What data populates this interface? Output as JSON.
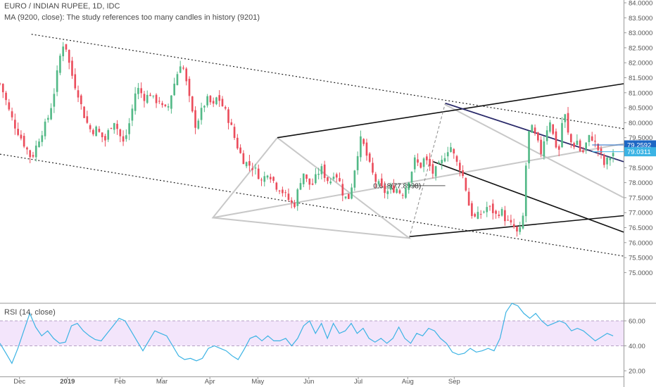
{
  "header": {
    "title": "EURO / INDIAN RUPEE, 1D, IDC",
    "ma_note": "MA (9200, close): The study references too many candles in history (9201)",
    "rsi_label": "RSI (14, close)"
  },
  "colors": {
    "up": "#53b987",
    "down": "#eb4d5c",
    "rsi_line": "#3bb3e4",
    "rsi_band": "#f3e5fb",
    "price_tag_current": "#1e67c4",
    "price_tag_last": "#3bb3e4",
    "channel_line": "#111111",
    "grey_line": "#c8c8c8"
  },
  "chart_data": [
    {
      "type": "candlestick",
      "title": "EURO / INDIAN RUPEE, 1D, IDC",
      "x_ticks": [
        "Dec",
        "2019",
        "Feb",
        "Mar",
        "Apr",
        "May",
        "Jun",
        "Jul",
        "Aug",
        "Sep"
      ],
      "y_ticks": [
        "75.0000",
        "75.5000",
        "76.0000",
        "76.5000",
        "77.0000",
        "77.5000",
        "78.0000",
        "78.5000",
        "79.0000",
        "79.5000",
        "80.0000",
        "80.5000",
        "81.0000",
        "81.5000",
        "82.0000",
        "82.5000",
        "83.0000",
        "83.5000",
        "84.0000"
      ],
      "ylim": [
        74.0,
        84.1
      ],
      "price_tags": [
        "79.2592",
        "79.0311"
      ],
      "annotations": [
        "0.618(77.8998)"
      ],
      "series": [
        {
          "close_path": [
            [
              0,
              81.3
            ],
            [
              3,
              80.9
            ],
            [
              6,
              80.4
            ],
            [
              9,
              80.0
            ],
            [
              12,
              79.7
            ],
            [
              15,
              79.4
            ],
            [
              18,
              79.1
            ],
            [
              21,
              78.8
            ],
            [
              24,
              79.2
            ],
            [
              27,
              79.6
            ],
            [
              30,
              79.9
            ],
            [
              33,
              80.3
            ],
            [
              36,
              81.0
            ],
            [
              40,
              82.2
            ],
            [
              43,
              82.8
            ],
            [
              46,
              82.0
            ],
            [
              49,
              81.4
            ],
            [
              52,
              81.0
            ],
            [
              55,
              80.4
            ],
            [
              58,
              80.0
            ],
            [
              61,
              79.7
            ],
            [
              64,
              79.8
            ],
            [
              67,
              79.6
            ],
            [
              70,
              79.4
            ],
            [
              73,
              79.8
            ],
            [
              76,
              80.1
            ],
            [
              79,
              79.7
            ],
            [
              82,
              79.3
            ],
            [
              85,
              79.7
            ],
            [
              88,
              80.4
            ],
            [
              91,
              81.2
            ],
            [
              94,
              81.0
            ],
            [
              97,
              80.8
            ],
            [
              100,
              81.0
            ],
            [
              103,
              80.7
            ],
            [
              106,
              80.8
            ],
            [
              109,
              80.4
            ],
            [
              112,
              80.5
            ],
            [
              115,
              81.1
            ],
            [
              118,
              81.6
            ],
            [
              121,
              82.1
            ],
            [
              124,
              81.4
            ],
            [
              127,
              80.6
            ],
            [
              130,
              79.9
            ],
            [
              133,
              80.2
            ],
            [
              136,
              80.6
            ],
            [
              139,
              80.8
            ],
            [
              142,
              80.5
            ],
            [
              145,
              80.9
            ],
            [
              148,
              80.6
            ],
            [
              151,
              80.3
            ],
            [
              154,
              79.9
            ],
            [
              157,
              79.4
            ],
            [
              160,
              79.0
            ],
            [
              163,
              78.7
            ],
            [
              166,
              78.6
            ],
            [
              169,
              78.5
            ],
            [
              172,
              78.3
            ],
            [
              175,
              78.0
            ],
            [
              178,
              78.4
            ],
            [
              181,
              78.2
            ],
            [
              184,
              77.9
            ],
            [
              187,
              77.8
            ],
            [
              190,
              77.6
            ],
            [
              193,
              77.4
            ],
            [
              196,
              77.2
            ],
            [
              199,
              77.8
            ],
            [
              202,
              78.4
            ],
            [
              205,
              78.0
            ],
            [
              208,
              77.9
            ],
            [
              211,
              78.2
            ],
            [
              214,
              78.5
            ],
            [
              217,
              78.2
            ],
            [
              220,
              78.0
            ],
            [
              223,
              78.4
            ],
            [
              226,
              78.1
            ],
            [
              229,
              77.6
            ],
            [
              232,
              77.4
            ],
            [
              235,
              78.0
            ],
            [
              238,
              78.9
            ],
            [
              241,
              79.5
            ],
            [
              244,
              79.0
            ],
            [
              247,
              78.5
            ],
            [
              250,
              78.1
            ],
            [
              253,
              77.9
            ],
            [
              256,
              77.7
            ],
            [
              259,
              77.7
            ],
            [
              262,
              77.8
            ],
            [
              265,
              77.8
            ],
            [
              268,
              77.6
            ],
            [
              271,
              77.9
            ],
            [
              274,
              78.3
            ],
            [
              277,
              78.8
            ],
            [
              280,
              78.5
            ],
            [
              283,
              78.8
            ],
            [
              286,
              78.6
            ],
            [
              289,
              78.3
            ],
            [
              292,
              78.5
            ],
            [
              295,
              78.7
            ],
            [
              298,
              79.1
            ],
            [
              301,
              79.2
            ],
            [
              304,
              78.7
            ],
            [
              307,
              78.5
            ],
            [
              310,
              78.0
            ],
            [
              313,
              77.2
            ],
            [
              316,
              76.8
            ],
            [
              319,
              76.9
            ],
            [
              322,
              77.0
            ],
            [
              325,
              77.2
            ],
            [
              328,
              77.1
            ],
            [
              331,
              76.9
            ],
            [
              334,
              77.1
            ],
            [
              337,
              76.8
            ],
            [
              340,
              76.6
            ],
            [
              343,
              76.5
            ],
            [
              346,
              76.2
            ],
            [
              349,
              76.9
            ],
            [
              352,
              79.6
            ],
            [
              355,
              79.8
            ],
            [
              358,
              79.4
            ],
            [
              361,
              79.0
            ],
            [
              364,
              79.7
            ],
            [
              367,
              80.1
            ],
            [
              370,
              79.3
            ],
            [
              373,
              79.1
            ],
            [
              376,
              80.5
            ],
            [
              379,
              79.6
            ],
            [
              382,
              79.2
            ],
            [
              385,
              79.4
            ],
            [
              388,
              78.9
            ],
            [
              391,
              79.3
            ],
            [
              394,
              79.6
            ],
            [
              397,
              79.3
            ],
            [
              400,
              79.0
            ],
            [
              403,
              78.6
            ],
            [
              406,
              78.8
            ],
            [
              409,
              79.0
            ]
          ]
        }
      ]
    },
    {
      "type": "line",
      "title": "RSI (14, close)",
      "y_ticks": [
        "20.00",
        "40.00",
        "60.00"
      ],
      "ylim": [
        15,
        75
      ],
      "band": [
        40,
        60
      ],
      "series": [
        {
          "values": [
            42,
            34,
            26,
            38,
            52,
            66,
            55,
            48,
            52,
            46,
            42,
            43,
            56,
            58,
            52,
            48,
            45,
            44,
            50,
            56,
            62,
            60,
            52,
            44,
            36,
            44,
            52,
            50,
            48,
            40,
            32,
            29,
            30,
            28,
            30,
            38,
            40,
            38,
            36,
            32,
            29,
            37,
            46,
            48,
            44,
            48,
            44,
            44,
            46,
            40,
            46,
            56,
            60,
            50,
            58,
            46,
            58,
            50,
            52,
            58,
            50,
            54,
            46,
            43,
            46,
            42,
            46,
            55,
            46,
            42,
            50,
            48,
            54,
            52,
            46,
            42,
            35,
            33,
            34,
            38,
            35,
            36,
            38,
            36,
            46,
            67,
            74,
            72,
            66,
            62,
            66,
            60,
            56,
            58,
            60,
            58,
            52,
            54,
            52,
            48,
            44,
            47,
            50,
            48
          ]
        }
      ]
    }
  ]
}
